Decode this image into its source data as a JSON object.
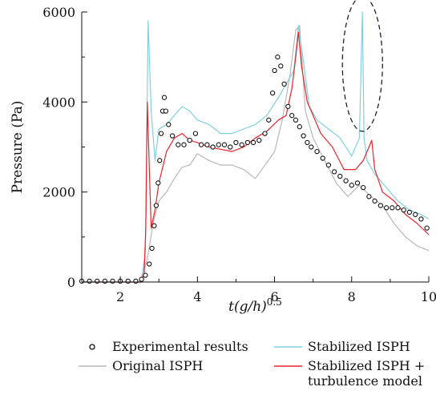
{
  "chart_data": {
    "type": "line",
    "title": "",
    "xlabel": "t(g/h)^0.5",
    "xlabel_parts": {
      "main": "t",
      "paren": "(g/h)",
      "exp": "0.5"
    },
    "ylabel": "Pressure (Pa)",
    "xlim": [
      1,
      10
    ],
    "ylim": [
      0,
      6000
    ],
    "xticks": [
      2,
      4,
      6,
      8,
      10
    ],
    "yticks": [
      0,
      2000,
      4000,
      6000
    ],
    "grid": false,
    "legend_position": "bottom",
    "colors": {
      "experimental": "#111111",
      "original": "#b8b8b8",
      "stabilized": "#7fd0e0",
      "turbulence": "#e8232a",
      "ellipse": "#111111"
    },
    "series": [
      {
        "name": "Experimental results",
        "marker": "open-circle",
        "x": [
          1.0,
          1.2,
          1.4,
          1.6,
          1.8,
          2.0,
          2.2,
          2.4,
          2.55,
          2.65,
          2.75,
          2.82,
          2.88,
          2.93,
          2.98,
          3.02,
          3.06,
          3.1,
          3.14,
          3.18,
          3.25,
          3.35,
          3.5,
          3.65,
          3.8,
          3.95,
          4.1,
          4.25,
          4.4,
          4.55,
          4.7,
          4.85,
          5.0,
          5.15,
          5.3,
          5.45,
          5.6,
          5.75,
          5.85,
          5.95,
          6.0,
          6.08,
          6.16,
          6.25,
          6.35,
          6.45,
          6.55,
          6.65,
          6.75,
          6.85,
          6.95,
          7.1,
          7.25,
          7.4,
          7.55,
          7.7,
          7.85,
          8.0,
          8.15,
          8.3,
          8.45,
          8.6,
          8.75,
          8.9,
          9.05,
          9.2,
          9.35,
          9.5,
          9.65,
          9.8,
          9.95
        ],
        "y": [
          20,
          20,
          20,
          20,
          20,
          20,
          20,
          20,
          60,
          150,
          400,
          750,
          1250,
          1700,
          2200,
          2700,
          3300,
          3800,
          4100,
          3800,
          3500,
          3250,
          3050,
          3050,
          3150,
          3300,
          3050,
          3050,
          3000,
          3050,
          3050,
          3000,
          3100,
          3050,
          3100,
          3100,
          3150,
          3300,
          3600,
          4200,
          4700,
          5000,
          4800,
          4400,
          3900,
          3700,
          3600,
          3450,
          3250,
          3100,
          3000,
          2900,
          2750,
          2600,
          2450,
          2350,
          2250,
          2150,
          2200,
          2100,
          1900,
          1800,
          1700,
          1650,
          1650,
          1650,
          1600,
          1550,
          1500,
          1400,
          1200
        ]
      },
      {
        "name": "Original ISPH",
        "x": [
          1.0,
          2.5,
          2.7,
          2.85,
          3.0,
          3.2,
          3.4,
          3.6,
          3.8,
          4.0,
          4.3,
          4.6,
          4.9,
          5.2,
          5.5,
          5.8,
          6.0,
          6.2,
          6.4,
          6.55,
          6.65,
          6.8,
          7.0,
          7.3,
          7.6,
          7.9,
          8.2,
          8.5,
          8.8,
          9.1,
          9.4,
          9.7,
          10.0
        ],
        "y": [
          0,
          0,
          500,
          1300,
          1800,
          2000,
          2300,
          2550,
          2600,
          2850,
          2700,
          2600,
          2600,
          2500,
          2300,
          2650,
          2900,
          3600,
          4600,
          5600,
          5700,
          3800,
          3200,
          2700,
          2200,
          1900,
          2150,
          1900,
          1700,
          1300,
          1000,
          800,
          700
        ]
      },
      {
        "name": "Stabilized ISPH",
        "x": [
          1.0,
          2.55,
          2.65,
          2.72,
          2.8,
          2.9,
          3.0,
          3.2,
          3.4,
          3.6,
          3.8,
          4.0,
          4.3,
          4.6,
          4.9,
          5.2,
          5.5,
          5.8,
          6.1,
          6.3,
          6.5,
          6.62,
          6.75,
          6.9,
          7.1,
          7.4,
          7.7,
          8.0,
          8.2,
          8.28,
          8.32,
          8.4,
          8.6,
          8.9,
          9.2,
          9.5,
          9.8,
          10.0
        ],
        "y": [
          0,
          0,
          700,
          5800,
          3800,
          2700,
          3400,
          3500,
          3700,
          3900,
          3800,
          3600,
          3500,
          3300,
          3300,
          3400,
          3500,
          3700,
          4100,
          4400,
          4700,
          5700,
          4900,
          3900,
          3600,
          3400,
          3200,
          2800,
          3200,
          6000,
          3200,
          2700,
          2400,
          2100,
          1800,
          1600,
          1500,
          1400
        ]
      },
      {
        "name": "Stabilized ISPH + turbulence model",
        "x": [
          1.0,
          2.55,
          2.62,
          2.66,
          2.7,
          2.8,
          2.9,
          3.0,
          3.2,
          3.4,
          3.6,
          3.8,
          4.0,
          4.3,
          4.6,
          4.9,
          5.2,
          5.5,
          5.8,
          6.1,
          6.3,
          6.45,
          6.55,
          6.62,
          6.7,
          6.85,
          7.0,
          7.2,
          7.5,
          7.8,
          8.1,
          8.3,
          8.45,
          8.52,
          8.6,
          8.8,
          9.1,
          9.4,
          9.7,
          10.0
        ],
        "y": [
          0,
          0,
          200,
          1200,
          4000,
          1200,
          1600,
          2200,
          2900,
          3200,
          3300,
          3150,
          3100,
          3000,
          2950,
          2900,
          3000,
          3200,
          3350,
          3600,
          3700,
          4300,
          5000,
          5550,
          4800,
          4000,
          3700,
          3300,
          3000,
          2500,
          2500,
          2700,
          3000,
          3150,
          2500,
          2000,
          1800,
          1500,
          1300,
          1050
        ]
      }
    ],
    "annotation": {
      "type": "dashed-ellipse",
      "x_center": 8.28,
      "y_center": 4850,
      "x_halfwidth": 0.52,
      "y_halfwidth": 1500
    },
    "legend": [
      {
        "label": "Experimental results",
        "lines": [
          "Experimental results"
        ],
        "style": "circle",
        "series": "Experimental results"
      },
      {
        "label": "Stabilized ISPH",
        "lines": [
          "Stabilized ISPH"
        ],
        "style": "line",
        "series": "Stabilized ISPH"
      },
      {
        "label": "Original ISPH",
        "lines": [
          "Original ISPH"
        ],
        "style": "line",
        "series": "Original ISPH"
      },
      {
        "label": "Stabilized ISPH + turbulence model",
        "lines": [
          "Stabilized ISPH +",
          "turbulence model"
        ],
        "style": "line",
        "series": "Stabilized ISPH + turbulence model"
      }
    ]
  }
}
